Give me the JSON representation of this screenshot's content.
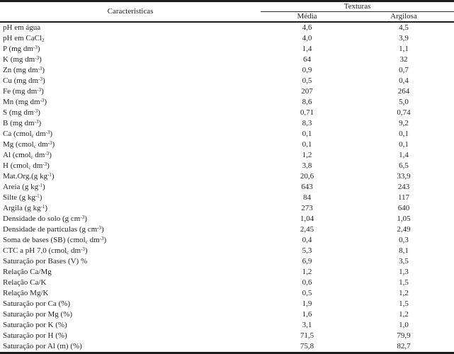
{
  "colors": {
    "text": "#231f20",
    "border": "#1d1d1d",
    "background": "#ffffff"
  },
  "table": {
    "characteristics_header": "Características",
    "group_header": "Texturas",
    "sub_headers": [
      "Média",
      "Argilosa"
    ],
    "rows": [
      {
        "label": "pH em água",
        "media": "4,6",
        "argilosa": "4,5"
      },
      {
        "label": "pH em CaCl~2~",
        "media": "4,0",
        "argilosa": "3,9"
      },
      {
        "label": "P (mg dm^-3^)",
        "media": "1,4",
        "argilosa": "1,1"
      },
      {
        "label": "K (mg dm^-3^)",
        "media": "64",
        "argilosa": "32"
      },
      {
        "label": "Zn (mg dm^-3^)",
        "media": "0,9",
        "argilosa": "0,7"
      },
      {
        "label": "Cu (mg dm^-3^)",
        "media": "0,5",
        "argilosa": "0,4"
      },
      {
        "label": "Fe (mg dm^-3^)",
        "media": "207",
        "argilosa": "264"
      },
      {
        "label": "Mn (mg dm^-3^)",
        "media": "8,6",
        "argilosa": "5,0"
      },
      {
        "label": "S (mg dm^-3^)",
        "media": "0,71",
        "argilosa": "0,74"
      },
      {
        "label": "B (mg dm^-3^)",
        "media": "8,3",
        "argilosa": "9,2"
      },
      {
        "label": "Ca (cmol~c~ dm^-3^)",
        "media": "0,1",
        "argilosa": "0,1"
      },
      {
        "label": "Mg (cmol~c~ dm^-3^)",
        "media": "0,1",
        "argilosa": "0,1"
      },
      {
        "label": "Al (cmol~c~ dm^-3^)",
        "media": "1,2",
        "argilosa": "1,4"
      },
      {
        "label": "H (cmol~c~ dm^-3^)",
        "media": "3,8",
        "argilosa": "6,5"
      },
      {
        "label": "Mat.Org.(g kg^-1^)",
        "media": "20,6",
        "argilosa": "33,9"
      },
      {
        "label": "Areia (g kg^-1^)",
        "media": "643",
        "argilosa": "243"
      },
      {
        "label": "Silte (g kg^-1^)",
        "media": "84",
        "argilosa": "117"
      },
      {
        "label": "Argila (g kg^-1^)",
        "media": "273",
        "argilosa": "640"
      },
      {
        "label": "Densidade do solo (g cm^-3^)",
        "media": "1,04",
        "argilosa": "1,05"
      },
      {
        "label": "Densidade de partículas (g cm^-3^)",
        "media": "2,45",
        "argilosa": "2,49"
      },
      {
        "label": "Soma de bases (SB) (cmol~c~ dm^-3^)",
        "media": "0,4",
        "argilosa": "0,3"
      },
      {
        "label": "CTC a pH 7,0 (cmol~c~ dm^-3^)",
        "media": "5,3",
        "argilosa": "8,1"
      },
      {
        "label": "Saturação por Bases (V) %",
        "media": "6,9",
        "argilosa": "3,5"
      },
      {
        "label": "Relação Ca/Mg",
        "media": "1,2",
        "argilosa": "1,3"
      },
      {
        "label": "Relação Ca/K",
        "media": "0,6",
        "argilosa": "1,5"
      },
      {
        "label": "Relação Mg/K",
        "media": "0,5",
        "argilosa": "1,2"
      },
      {
        "label": "Saturação por Ca (%)",
        "media": "1,9",
        "argilosa": "1,5"
      },
      {
        "label": "Saturação por Mg (%)",
        "media": "1,6",
        "argilosa": "1,2"
      },
      {
        "label": "Saturação por K (%)",
        "media": "3,1",
        "argilosa": "1,0"
      },
      {
        "label": "Saturação por H (%)",
        "media": "71,5",
        "argilosa": "79,9"
      },
      {
        "label": "Saturação por Al (m) (%)",
        "media": "75,8",
        "argilosa": "82,7"
      }
    ]
  }
}
